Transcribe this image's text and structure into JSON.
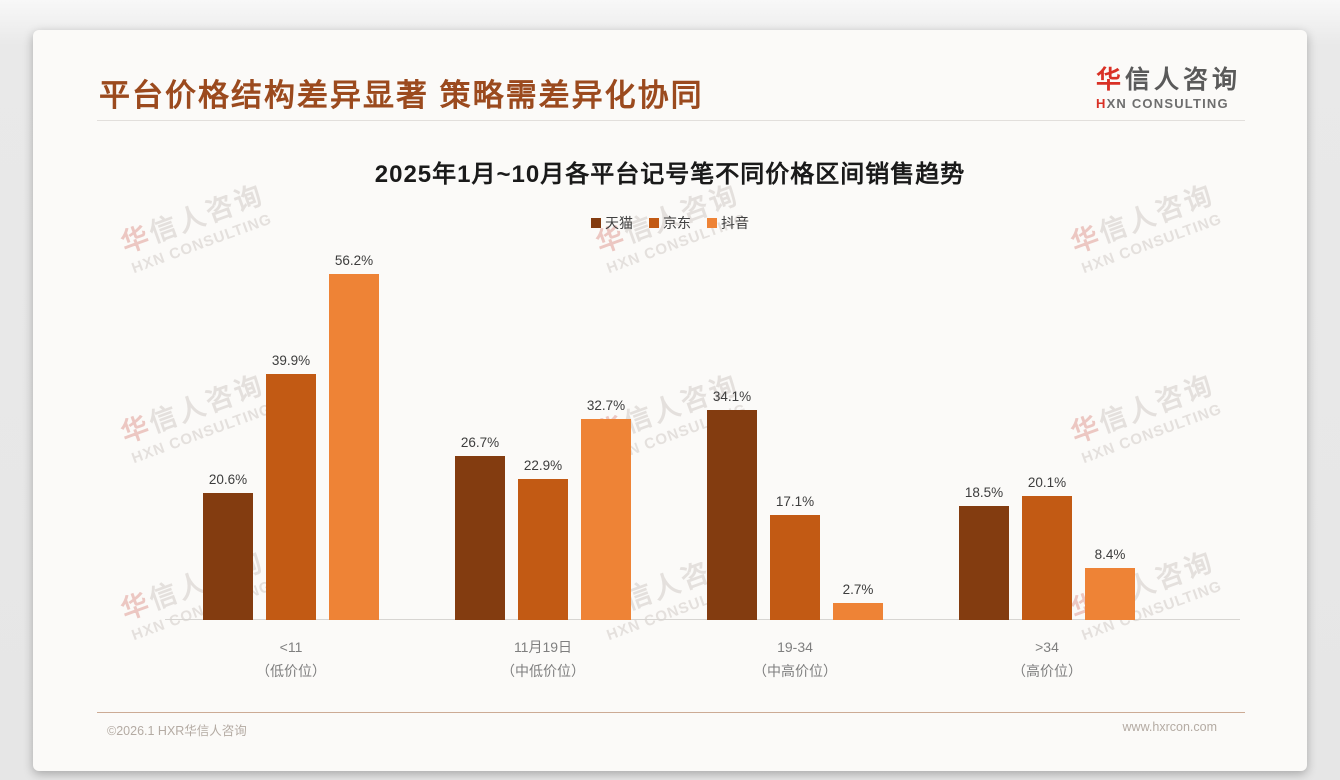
{
  "page_title": "平台价格结构差异显著 策略需差异化协同",
  "logo": {
    "cn_first": "华",
    "cn_rest": "信人咨询",
    "en": "XN CONSULTING",
    "en_mark": "H"
  },
  "watermark": {
    "cn_first": "华",
    "cn_rest": "信人咨询",
    "en": "HXN CONSULTING"
  },
  "chart_data": {
    "type": "bar",
    "title": "2025年1月~10月各平台记号笔不同价格区间销售趋势",
    "categories": [
      "<11",
      "11月19日",
      "19-34",
      ">34"
    ],
    "category_sublabels": [
      "（低价位）",
      "（中低价位）",
      "（中高价位）",
      "（高价位）"
    ],
    "series": [
      {
        "name": "天猫",
        "color": "#833c10",
        "values": [
          20.6,
          26.7,
          34.1,
          18.5
        ]
      },
      {
        "name": "京东",
        "color": "#c25a14",
        "values": [
          39.9,
          22.9,
          17.1,
          20.1
        ]
      },
      {
        "name": "抖音",
        "color": "#ee8336",
        "values": [
          56.2,
          32.7,
          2.7,
          8.4
        ]
      }
    ],
    "value_suffix": "%",
    "ylim": [
      0,
      60
    ],
    "grid": false,
    "legend_position": "top-center"
  },
  "footer": {
    "left": "©2026.1 HXR华信人咨询",
    "right": "www.hxrcon.com"
  }
}
